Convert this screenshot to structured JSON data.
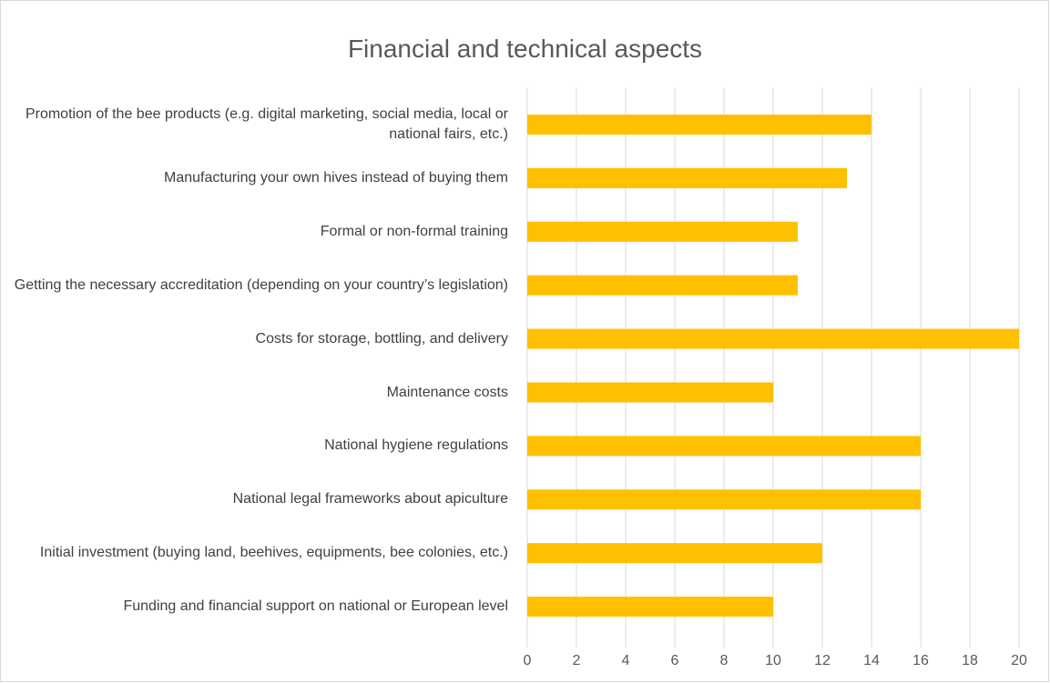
{
  "chart_data": {
    "type": "bar",
    "orientation": "horizontal",
    "title": "Financial and technical aspects",
    "categories": [
      "Promotion of the bee products (e.g. digital marketing, social media, local or national fairs, etc.)",
      "Manufacturing your own hives instead of buying them",
      "Formal or non-formal training",
      "Getting the necessary accreditation (depending on your country’s legislation)",
      "Costs for storage, bottling, and delivery",
      "Maintenance costs",
      "National hygiene regulations",
      "National legal frameworks about apiculture",
      "Initial investment (buying land, beehives, equipments, bee colonies, etc.)",
      "Funding and financial support on national or European level"
    ],
    "values": [
      14,
      13,
      11,
      11,
      20,
      10,
      16,
      16,
      12,
      10
    ],
    "color": "#ffc000",
    "xlim": [
      0,
      20
    ],
    "xticks": [
      0,
      2,
      4,
      6,
      8,
      10,
      12,
      14,
      16,
      18,
      20
    ],
    "grid": true
  }
}
